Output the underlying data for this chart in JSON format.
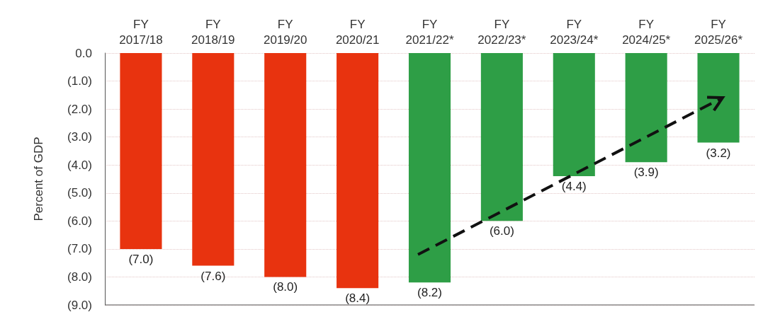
{
  "chart_data": {
    "type": "bar",
    "ylabel": "Percent of GDP",
    "categories": [
      "FY 2017/18",
      "FY 2018/19",
      "FY 2019/20",
      "FY 2020/21",
      "FY 2021/22*",
      "FY 2022/23*",
      "FY 2023/24*",
      "FY 2024/25*",
      "FY 2025/26*"
    ],
    "values": [
      -7.0,
      -7.6,
      -8.0,
      -8.4,
      -8.2,
      -6.0,
      -4.4,
      -3.9,
      -3.2
    ],
    "colors": [
      "#e8330f",
      "#e8330f",
      "#e8330f",
      "#e8330f",
      "#2e9e46",
      "#2e9e46",
      "#2e9e46",
      "#2e9e46",
      "#2e9e46"
    ],
    "value_labels": [
      "(7.0)",
      "(7.6)",
      "(8.0)",
      "(8.4)",
      "(8.2)",
      "(6.0)",
      "(4.4)",
      "(3.9)",
      "(3.2)"
    ],
    "ylim": [
      -9,
      0
    ],
    "yticks": [
      {
        "value": 0,
        "label": "0.0"
      },
      {
        "value": -1,
        "label": "(1.0)"
      },
      {
        "value": -2,
        "label": "(2.0)"
      },
      {
        "value": -3,
        "label": "(3.0)"
      },
      {
        "value": -4,
        "label": "(4.0)"
      },
      {
        "value": -5,
        "label": "(5.0)"
      },
      {
        "value": -6,
        "label": "(6.0)"
      },
      {
        "value": -7,
        "label": "(7.0)"
      },
      {
        "value": -8,
        "label": "(8.0)"
      },
      {
        "value": -9,
        "label": "(9.0)"
      }
    ],
    "grid": "y"
  }
}
